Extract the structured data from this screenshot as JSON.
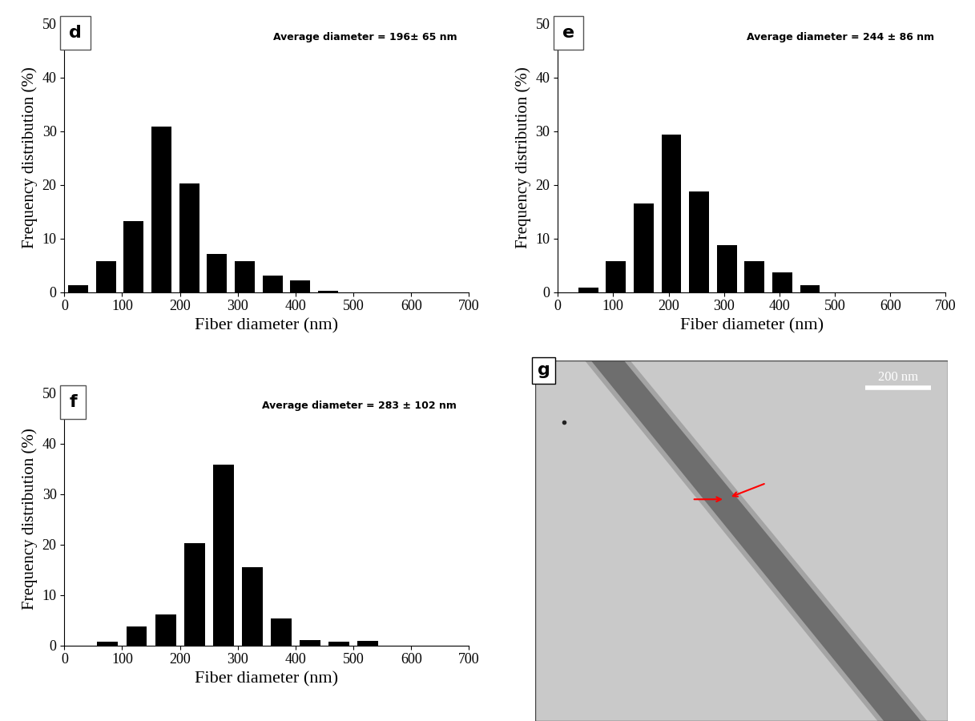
{
  "chart_data": [
    {
      "type": "histogram",
      "panel_label": "d",
      "annotation": "Average diameter = 196± 65 nm",
      "x_label": "Fiber diameter (nm)",
      "y_label": "Frequency distribution (%)",
      "bins": [
        0,
        48,
        96,
        144,
        192,
        240,
        288,
        336,
        384,
        432,
        480
      ],
      "values": [
        1.2,
        5.8,
        13.2,
        30.8,
        20.2,
        7.1,
        5.8,
        3.0,
        2.1,
        0.2
      ],
      "color": "#000000",
      "xlim": [
        0,
        700
      ],
      "ylim": [
        0,
        50
      ],
      "xticks": [
        0,
        100,
        200,
        300,
        400,
        500,
        600,
        700
      ],
      "yticks": [
        0,
        10,
        20,
        30,
        40,
        50
      ]
    },
    {
      "type": "histogram",
      "panel_label": "e",
      "annotation": "Average diameter = 244 ± 86 nm",
      "x_label": "Fiber diameter (nm)",
      "y_label": "Frequency distribution (%)",
      "bins": [
        30,
        80,
        130,
        180,
        230,
        280,
        330,
        380,
        430,
        480
      ],
      "values": [
        0.8,
        5.8,
        16.5,
        29.3,
        18.8,
        8.8,
        5.8,
        3.7,
        1.2
      ],
      "color": "#000000",
      "xlim": [
        0,
        700
      ],
      "ylim": [
        0,
        50
      ],
      "xticks": [
        0,
        100,
        200,
        300,
        400,
        500,
        600,
        700
      ],
      "yticks": [
        0,
        10,
        20,
        30,
        40,
        50
      ]
    },
    {
      "type": "histogram",
      "panel_label": "f",
      "annotation": "Average diameter = 283 ± 102 nm",
      "x_label": "Fiber diameter (nm)",
      "y_label": "Frequency distribution (%)",
      "bins": [
        50,
        100,
        150,
        200,
        250,
        300,
        350,
        400,
        450,
        500,
        550
      ],
      "values": [
        0.7,
        3.8,
        6.1,
        20.3,
        35.8,
        15.5,
        5.3,
        1.1,
        0.7,
        0.9
      ],
      "color": "#000000",
      "xlim": [
        0,
        700
      ],
      "ylim": [
        0,
        50
      ],
      "xticks": [
        0,
        100,
        200,
        300,
        400,
        500,
        600,
        700
      ],
      "yticks": [
        0,
        10,
        20,
        30,
        40,
        50
      ]
    },
    {
      "type": "image",
      "panel_label": "g",
      "scale_bar": "200 nm"
    }
  ]
}
